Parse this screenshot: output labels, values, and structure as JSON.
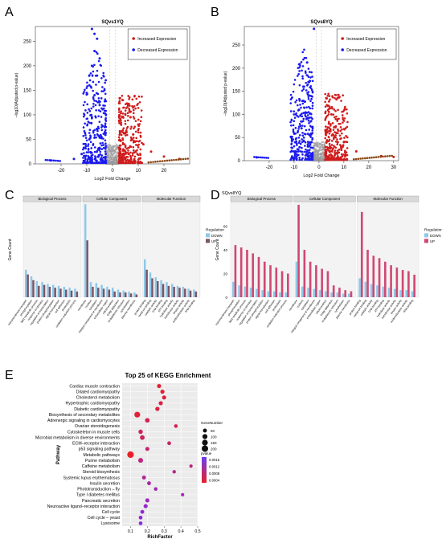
{
  "panels": {
    "A": {
      "letter": "A",
      "title": "SQvs1YQ",
      "chart_data": {
        "type": "scatter",
        "title": "SQvs1YQ",
        "xlabel": "Log2 Fold Change",
        "ylabel": "−log10(Adjusted p-value)",
        "xlim": [
          -30,
          30
        ],
        "ylim": [
          0,
          280
        ],
        "xticks": [
          -20,
          -10,
          0,
          10,
          20
        ],
        "yticks": [
          0,
          50,
          100,
          150,
          200,
          250
        ],
        "legend": [
          "Increased Expression",
          "Decreased Expression"
        ],
        "legend_position": "top-right",
        "colors": {
          "increased": "#d01c1c",
          "decreased": "#1a1aee",
          "ns": "#9a9a9a",
          "line": "#8b4513"
        },
        "series": [
          {
            "name": "Decreased Expression",
            "points": [
              [
                -8,
                275
              ],
              [
                -7,
                265
              ],
              [
                -6,
                255
              ],
              [
                -7,
                230
              ],
              [
                -5,
                215
              ],
              [
                -8,
                200
              ],
              [
                -6,
                180
              ],
              [
                -9,
                160
              ],
              [
                -7,
                140
              ],
              [
                -5,
                120
              ],
              [
                -8,
                95
              ],
              [
                -6,
                70
              ],
              [
                -9,
                50
              ],
              [
                -12,
                20
              ],
              [
                -15,
                10
              ],
              [
                -24,
                7
              ]
            ]
          },
          {
            "name": "Increased Expression",
            "points": [
              [
                4,
                130
              ],
              [
                6,
                120
              ],
              [
                5,
                100
              ],
              [
                7,
                95
              ],
              [
                10,
                80
              ],
              [
                8,
                60
              ],
              [
                12,
                40
              ],
              [
                15,
                25
              ],
              [
                20,
                15
              ],
              [
                26,
                10
              ]
            ]
          }
        ]
      }
    },
    "B": {
      "letter": "B",
      "title": "SQvs8YQ",
      "chart_data": {
        "type": "scatter",
        "title": "SQvs8YQ",
        "xlabel": "Log2 Fold Change",
        "ylabel": "−log10(Adjusted p-value)",
        "xlim": [
          -30,
          32
        ],
        "ylim": [
          0,
          290
        ],
        "xticks": [
          -20,
          -10,
          0,
          10,
          20,
          30
        ],
        "yticks": [
          0,
          50,
          100,
          150,
          200,
          250
        ],
        "legend": [
          "Increased Expression",
          "Decreased Expression"
        ],
        "legend_position": "top-right",
        "colors": {
          "increased": "#d01c1c",
          "decreased": "#1a1aee",
          "ns": "#9a9a9a",
          "line": "#8b4513"
        },
        "series": [
          {
            "name": "Decreased Expression",
            "points": [
              [
                -2,
                285
              ],
              [
                -4,
                170
              ],
              [
                -6,
                160
              ],
              [
                -8,
                110
              ],
              [
                -5,
                90
              ],
              [
                -7,
                70
              ],
              [
                -3,
                40
              ],
              [
                -10,
                20
              ],
              [
                -25,
                7
              ]
            ]
          },
          {
            "name": "Increased Expression",
            "points": [
              [
                3,
                135
              ],
              [
                5,
                100
              ],
              [
                4,
                80
              ],
              [
                7,
                60
              ],
              [
                10,
                40
              ],
              [
                15,
                20
              ],
              [
                25,
                10
              ],
              [
                30,
                8
              ]
            ]
          }
        ]
      }
    },
    "C": {
      "letter": "C",
      "title": "",
      "chart_data": {
        "type": "bar",
        "facets": [
          "Biological Process",
          "Cellular Component",
          "Molecular Function"
        ],
        "ylabel": "Gene Count",
        "legend_title": "Regulation",
        "legend": [
          "DOWN",
          "UP"
        ],
        "colors": {
          "DOWN": "#8ec9e8",
          "UP": "#7a5468"
        },
        "groups": [
          {
            "facet": "Biological Process",
            "categories": [
              "transmembrane transport",
              "phosphorylation",
              "lipid metabolic process",
              "response to stimulus",
              "regulation of transcription",
              "protein phosphorylation",
              "signal transduction",
              "cell adhesion",
              "proteolysis",
              "oxidation-reduction process"
            ],
            "down": [
              29,
              22,
              17,
              16,
              14,
              13,
              12,
              11,
              10,
              9
            ],
            "up": [
              24,
              18,
              12,
              13,
              11,
              10,
              9,
              8,
              7,
              6
            ]
          },
          {
            "facet": "Cellular Component",
            "categories": [
              "membrane",
              "nucleus",
              "cytoplasm",
              "integral component of membrane",
              "extracellular region",
              "mitochondrion",
              "Golgi apparatus",
              "endoplasmic reticulum",
              "cytoskeleton",
              "plasma membrane"
            ],
            "down": [
              98,
              16,
              15,
              13,
              11,
              10,
              8,
              7,
              6,
              5
            ],
            "up": [
              60,
              11,
              10,
              9,
              8,
              6,
              5,
              5,
              4,
              3
            ]
          },
          {
            "facet": "Molecular Function",
            "categories": [
              "protein binding",
              "metal ion binding",
              "catalytic activity",
              "DNA binding",
              "ATP binding",
              "hydrolase activity",
              "transferase activity",
              "kinase activity",
              "oxidoreductase activity",
              "RNA binding"
            ],
            "down": [
              40,
              26,
              21,
              18,
              16,
              14,
              12,
              11,
              9,
              8
            ],
            "up": [
              29,
              20,
              17,
              14,
              12,
              11,
              10,
              9,
              7,
              6
            ]
          }
        ]
      }
    },
    "D": {
      "letter": "D",
      "title": "SQvs8YQ",
      "chart_data": {
        "type": "bar",
        "title": "SQvs8YQ",
        "facets": [
          "Biological Process",
          "Cellular Component",
          "Molecular Function"
        ],
        "ylabel": "Gene Count",
        "yticks": [
          0,
          20,
          40,
          60
        ],
        "legend_title": "Regulation",
        "legend": [
          "DOWN",
          "UP"
        ],
        "colors": {
          "DOWN": "#8ec9e8",
          "UP": "#d04873"
        },
        "groups": [
          {
            "facet": "Biological Process",
            "categories": [
              "transmembrane transport",
              "phosphorylation",
              "lipid metabolic process",
              "response to stimulus",
              "regulation of transcription",
              "protein phosphorylation",
              "signal transduction",
              "cell adhesion",
              "proteolysis",
              "oxidation-reduction process"
            ],
            "down": [
              13,
              10,
              9,
              8,
              7,
              6,
              5,
              5,
              4,
              4
            ],
            "up": [
              44,
              42,
              40,
              37,
              34,
              30,
              27,
              25,
              22,
              20
            ]
          },
          {
            "facet": "Cellular Component",
            "categories": [
              "membrane",
              "nucleus",
              "cytoplasm",
              "integral component of membrane",
              "extracellular region",
              "mitochondrion",
              "Golgi apparatus",
              "endoplasmic reticulum",
              "cytoskeleton",
              "plasma membrane"
            ],
            "down": [
              30,
              9,
              8,
              7,
              6,
              5,
              4,
              4,
              3,
              3
            ],
            "up": [
              78,
              40,
              30,
              27,
              24,
              22,
              10,
              8,
              6,
              5
            ]
          },
          {
            "facet": "Molecular Function",
            "categories": [
              "protein binding",
              "metal ion binding",
              "catalytic activity",
              "DNA binding",
              "ATP binding",
              "hydrolase activity",
              "transferase activity",
              "kinase activity",
              "oxidoreductase activity",
              "RNA binding"
            ],
            "down": [
              16,
              13,
              11,
              10,
              9,
              8,
              7,
              6,
              6,
              5
            ],
            "up": [
              72,
              40,
              35,
              33,
              30,
              27,
              25,
              23,
              22,
              19
            ]
          }
        ]
      }
    },
    "E": {
      "letter": "E",
      "title": "Top 25 of KEGG Enrichment",
      "chart_data": {
        "type": "scatter",
        "title": "Top 25 of KEGG Enrichment",
        "xlabel": "RichFactor",
        "ylabel": "Pathway",
        "xlim": [
          0.05,
          0.5
        ],
        "xticks": [
          0.1,
          0.2,
          0.3,
          0.4,
          0.5
        ],
        "size_legend_title": "GeneNumber",
        "size_legend": [
          50,
          100,
          150,
          200
        ],
        "color_legend_title": "pvalue",
        "color_legend": [
          "0.0016",
          "0.0012",
          "0.0008",
          "0.0004"
        ],
        "colors": {
          "low": "#e8202a",
          "high": "#8a2be2"
        },
        "pathways": [
          "Cardiac muscle contraction",
          "Dilated cardiomyopathy",
          "Cholesterol metabolism",
          "Hypertrophic cardiomyopathy",
          "Diabetic cardiomyopathy",
          "Biosynthesis of secondary metabolites",
          "Adrenergic signaling in cardiomyocytes",
          "Ovarian steroidogenesis",
          "Cytoskeleton in muscle cells",
          "Microbial metabolism in diverse environments",
          "ECM–receptor interaction",
          "p53 signaling pathway",
          "Metabolic pathways",
          "Purine metabolism",
          "Caffeine metabolism",
          "Steroid biosynthesis",
          "Systemic lupus erythematosus",
          "Insulin secretion",
          "Phototransduction – fly",
          "Type I diabetes mellitus",
          "Pancreatic secretion",
          "Neuroactive ligand–receptor interaction",
          "Cell cycle",
          "Cell cycle – yeast",
          "Lysosome"
        ],
        "rich_factor": [
          0.27,
          0.29,
          0.3,
          0.28,
          0.26,
          0.14,
          0.2,
          0.37,
          0.16,
          0.17,
          0.33,
          0.2,
          0.1,
          0.16,
          0.46,
          0.36,
          0.18,
          0.21,
          0.25,
          0.41,
          0.2,
          0.19,
          0.17,
          0.16,
          0.16
        ],
        "gene_number": [
          60,
          62,
          58,
          60,
          64,
          150,
          80,
          40,
          70,
          85,
          45,
          55,
          210,
          90,
          30,
          35,
          50,
          48,
          38,
          30,
          55,
          60,
          50,
          45,
          42
        ],
        "pvalue": [
          0.0002,
          0.0002,
          0.0003,
          0.0003,
          0.0003,
          0.0002,
          0.0004,
          0.0004,
          0.0005,
          0.0005,
          0.0006,
          0.0007,
          0.0001,
          0.0008,
          0.0008,
          0.0009,
          0.001,
          0.0011,
          0.0012,
          0.0012,
          0.0013,
          0.0014,
          0.0015,
          0.0015,
          0.0016
        ]
      }
    }
  }
}
